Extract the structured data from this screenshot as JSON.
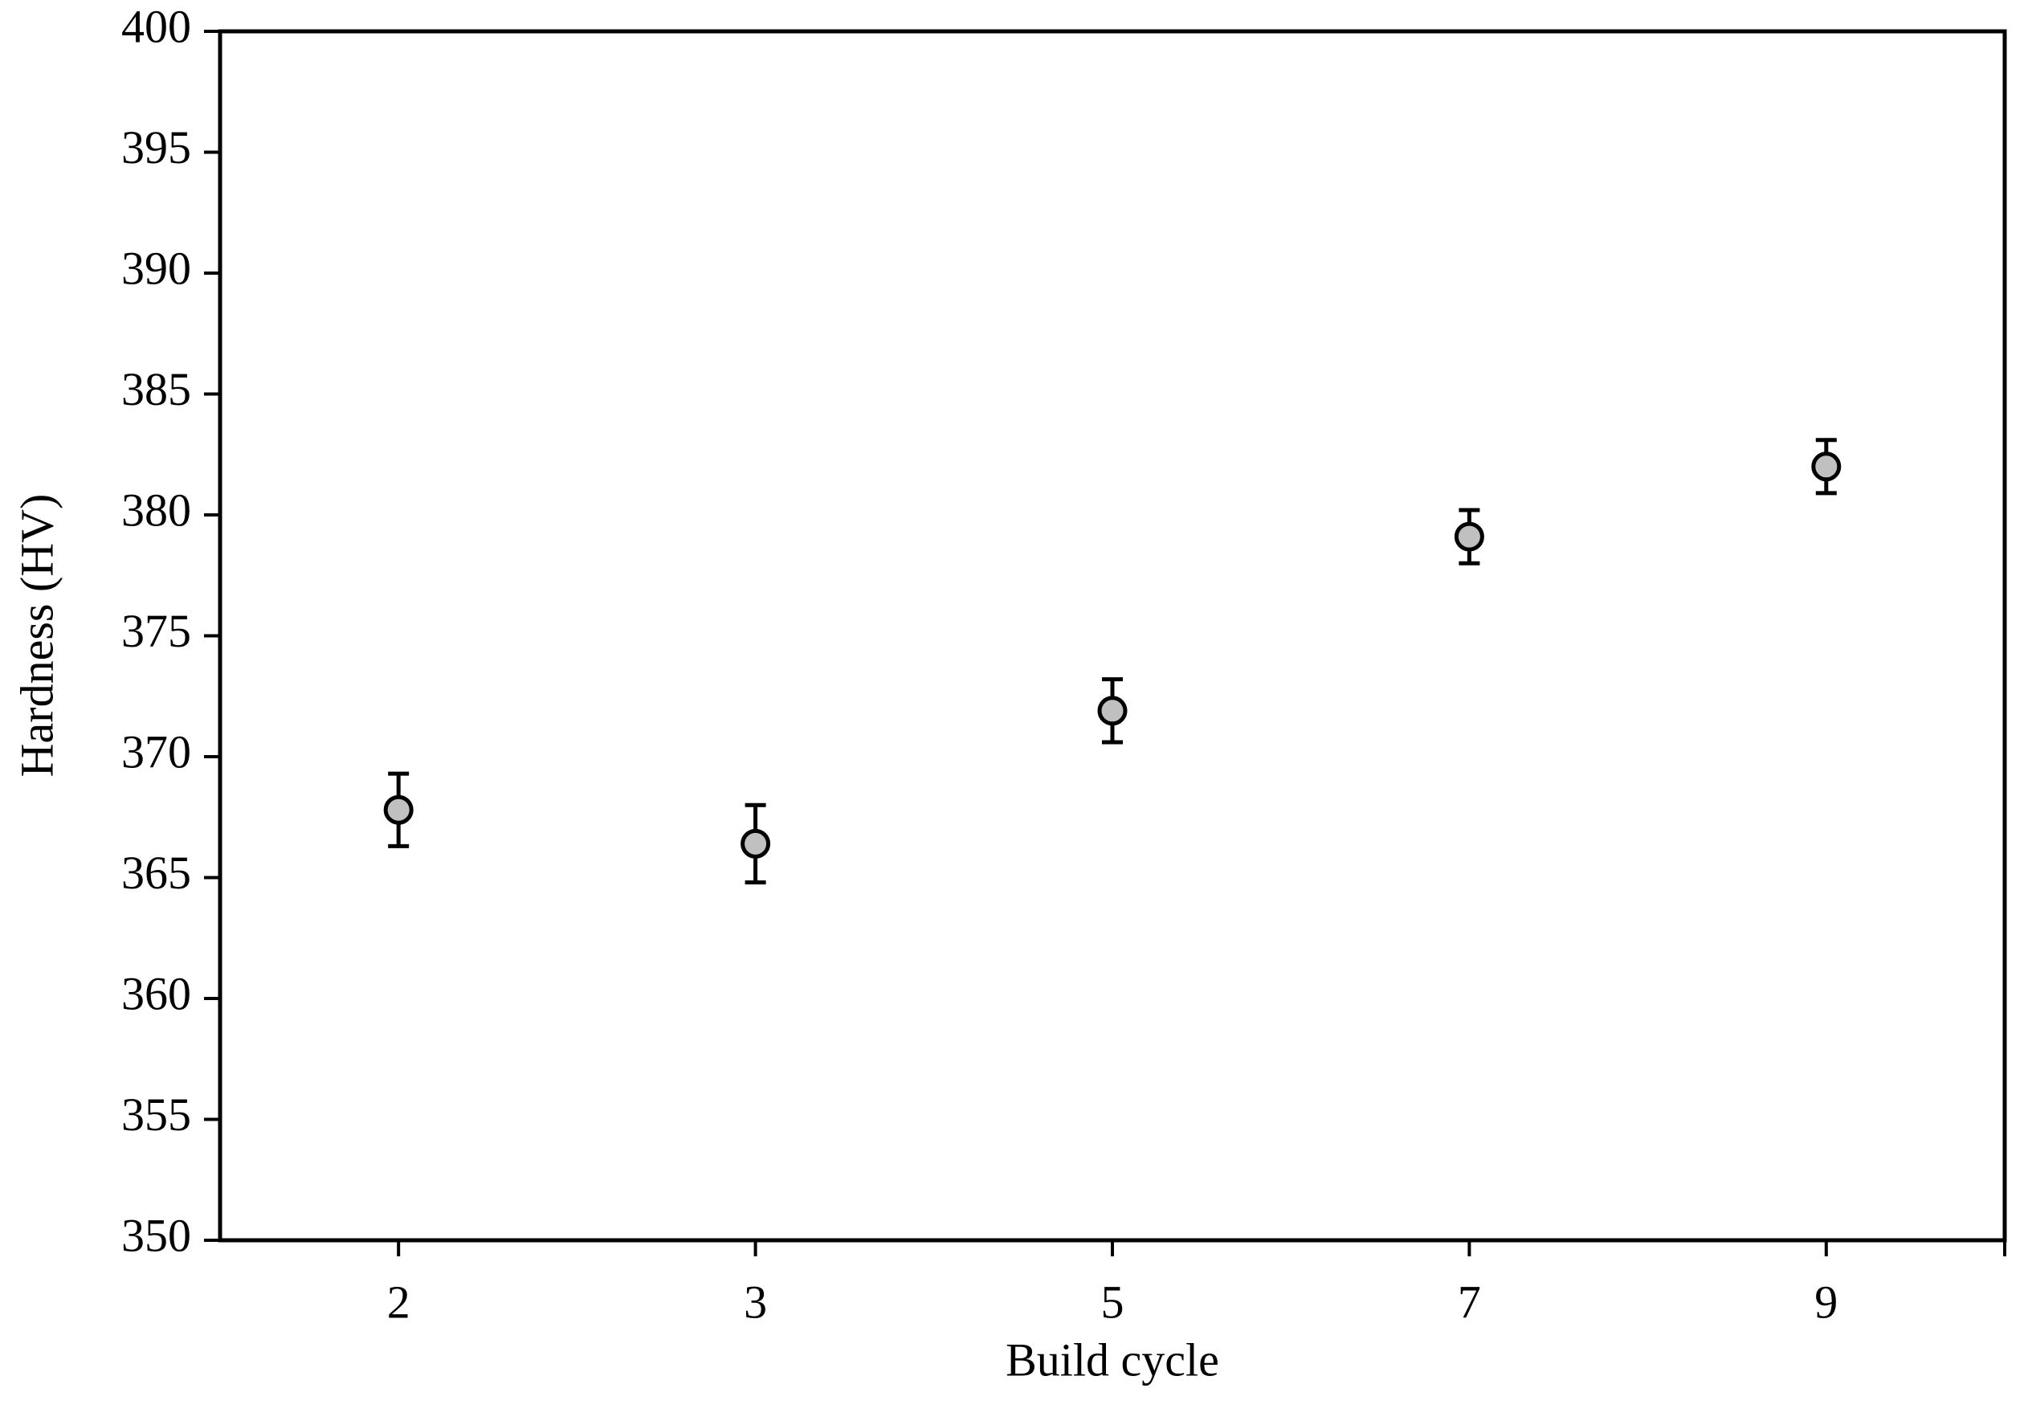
{
  "chart_data": {
    "type": "errorbar-scatter",
    "x_label": "Build cycle",
    "y_label": "Hardness (HV)",
    "categories": [
      "2",
      "3",
      "5",
      "7",
      "9"
    ],
    "values": [
      367.8,
      366.4,
      371.9,
      379.1,
      382.0
    ],
    "errors": [
      1.5,
      1.6,
      1.3,
      1.1,
      1.1
    ],
    "color": "#c0c0c0",
    "ylim": [
      350,
      400
    ],
    "yticks": [
      350,
      355,
      360,
      365,
      370,
      375,
      380,
      385,
      390,
      395,
      400
    ]
  }
}
